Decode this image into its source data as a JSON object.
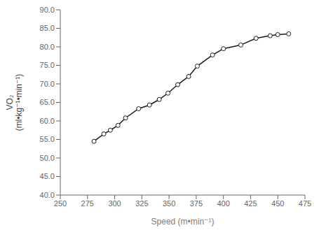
{
  "chart_data": {
    "type": "line",
    "x": [
      281,
      290,
      296,
      303,
      310,
      322,
      332,
      341,
      349,
      358,
      368,
      376,
      390,
      400,
      416,
      430,
      443,
      450,
      460
    ],
    "values": [
      54.5,
      56.5,
      57.5,
      58.8,
      60.8,
      63.3,
      64.3,
      65.8,
      67.5,
      69.8,
      72.0,
      74.8,
      77.8,
      79.5,
      80.5,
      82.3,
      83.0,
      83.3,
      83.5
    ],
    "xlabel": "Speed (m•min⁻¹)",
    "ylabel": "VO₂\n(ml•kg⁻¹•min⁻¹)",
    "xlim": [
      250,
      475
    ],
    "ylim": [
      40.0,
      90.0
    ],
    "xticks": [
      250,
      275,
      300,
      325,
      350,
      375,
      400,
      425,
      450,
      475
    ],
    "yticks": [
      {
        "value": 40,
        "label": "40.0"
      },
      {
        "value": 45,
        "label": "45.0"
      },
      {
        "value": 50,
        "label": "50.0"
      },
      {
        "value": 55,
        "label": "55.0"
      },
      {
        "value": 60,
        "label": "60.0"
      },
      {
        "value": 65,
        "label": "65.0"
      },
      {
        "value": 70,
        "label": "70.0"
      },
      {
        "value": 75,
        "label": "75.0"
      },
      {
        "value": 80,
        "label": "80.0"
      },
      {
        "value": 85,
        "label": "85.0"
      },
      {
        "value": 90,
        "label": "90.0"
      }
    ],
    "color": "#1a1a1a",
    "marker": "circle",
    "grid": false
  }
}
